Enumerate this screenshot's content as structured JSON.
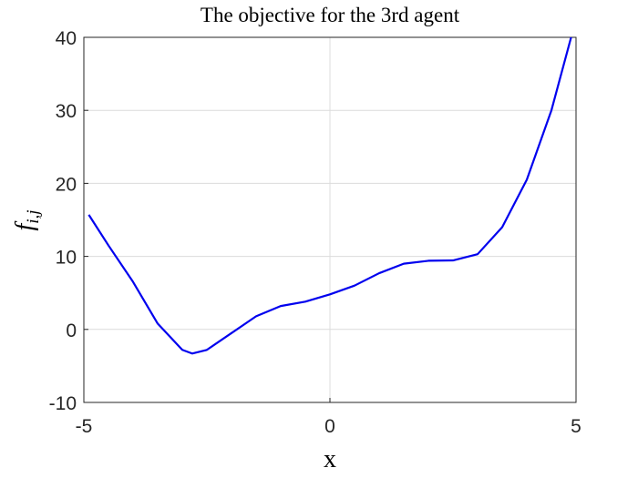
{
  "chart_data": {
    "type": "line",
    "title": "The objective for the 3rd agent",
    "xlabel": "x",
    "ylabel": "f",
    "ylabel_subscript": "i,j",
    "x": [
      -4.9,
      -4.5,
      -4,
      -3.5,
      -3,
      -2.8,
      -2.5,
      -2,
      -1.5,
      -1,
      -0.5,
      0,
      0.5,
      1,
      1.5,
      2,
      2.5,
      3,
      3.5,
      4,
      4.5,
      4.9
    ],
    "series": [
      {
        "color": "#0000ee",
        "values": [
          15.7,
          11.5,
          6.5,
          0.8,
          -2.8,
          -3.3,
          -2.8,
          -0.5,
          1.8,
          3.2,
          3.8,
          4.8,
          6.0,
          7.7,
          9.0,
          9.4,
          9.45,
          10.3,
          14.0,
          20.5,
          30.0,
          40.0
        ]
      }
    ],
    "xlim": [
      -5,
      5
    ],
    "xticks": [
      -5,
      0,
      5
    ],
    "ylim": [
      -10,
      40
    ],
    "yticks": [
      -10,
      0,
      10,
      20,
      30,
      40
    ],
    "grid": true
  }
}
